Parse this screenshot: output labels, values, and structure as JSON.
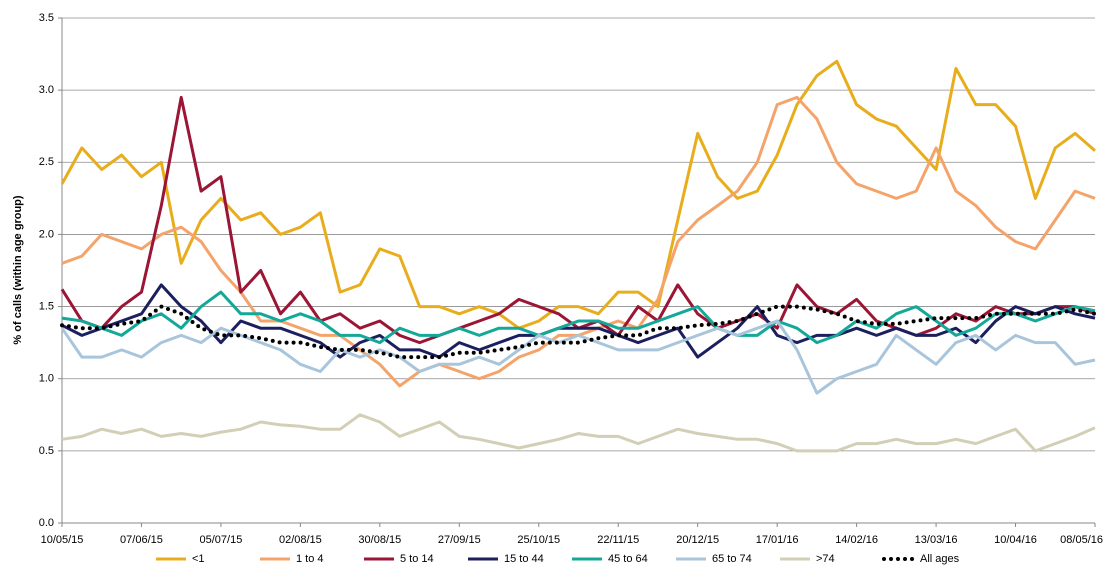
{
  "chart_data": {
    "type": "line",
    "y_label": "% of calls (within age group)",
    "categories": [
      "10/05/15",
      null,
      null,
      null,
      "07/06/15",
      null,
      null,
      null,
      "05/07/15",
      null,
      null,
      null,
      "02/08/15",
      null,
      null,
      null,
      "30/08/15",
      null,
      null,
      null,
      "27/09/15",
      null,
      null,
      null,
      "25/10/15",
      null,
      null,
      null,
      "22/11/15",
      null,
      null,
      null,
      "20/12/15",
      null,
      null,
      null,
      "17/01/16",
      null,
      null,
      null,
      "14/02/16",
      null,
      null,
      null,
      "13/03/16",
      null,
      null,
      null,
      "10/04/16",
      null,
      null,
      null,
      "08/05/16"
    ],
    "ylim": [
      0,
      3.5
    ],
    "yticks": [
      {
        "value": 0,
        "label": "0.0"
      },
      0.5,
      {
        "value": 1,
        "label": "1.0"
      },
      1.5,
      {
        "value": 2,
        "label": "2.0"
      },
      2.5,
      {
        "value": 3,
        "label": "3.0"
      },
      3.5
    ],
    "grid": true,
    "legend": "bottom",
    "series": [
      {
        "name": "<1",
        "color": "#e8ad1c",
        "values": [
          2.35,
          2.6,
          2.45,
          2.55,
          2.4,
          2.5,
          1.8,
          2.1,
          2.25,
          2.1,
          2.15,
          2.0,
          2.05,
          2.15,
          1.6,
          1.65,
          1.9,
          1.85,
          1.5,
          1.5,
          1.45,
          1.5,
          1.45,
          1.35,
          1.4,
          1.5,
          1.5,
          1.45,
          1.6,
          1.6,
          1.5,
          2.1,
          2.7,
          2.4,
          2.25,
          2.3,
          2.55,
          2.9,
          3.1,
          3.2,
          2.9,
          2.8,
          2.75,
          2.6,
          2.45,
          3.15,
          2.9,
          2.9,
          2.75,
          2.25,
          2.6,
          2.7,
          2.58
        ]
      },
      {
        "name": "1 to 4",
        "color": "#f4a46a",
        "values": [
          1.8,
          1.85,
          2.0,
          1.95,
          1.9,
          2.0,
          2.05,
          1.95,
          1.75,
          1.6,
          1.4,
          1.4,
          1.35,
          1.3,
          1.3,
          1.2,
          1.1,
          0.95,
          1.05,
          1.1,
          1.05,
          1.0,
          1.05,
          1.15,
          1.2,
          1.3,
          1.3,
          1.35,
          1.4,
          1.35,
          1.55,
          1.95,
          2.1,
          2.2,
          2.3,
          2.5,
          2.9,
          2.95,
          2.8,
          2.5,
          2.35,
          2.3,
          2.25,
          2.3,
          2.6,
          2.3,
          2.2,
          2.05,
          1.95,
          1.9,
          2.1,
          2.3,
          2.25
        ]
      },
      {
        "name": "5 to 14",
        "color": "#9b1535",
        "values": [
          1.62,
          1.4,
          1.35,
          1.5,
          1.6,
          2.2,
          2.95,
          2.3,
          2.4,
          1.6,
          1.75,
          1.45,
          1.6,
          1.4,
          1.45,
          1.35,
          1.4,
          1.3,
          1.25,
          1.3,
          1.35,
          1.4,
          1.45,
          1.55,
          1.5,
          1.45,
          1.35,
          1.4,
          1.3,
          1.5,
          1.4,
          1.65,
          1.45,
          1.35,
          1.4,
          1.45,
          1.35,
          1.65,
          1.5,
          1.45,
          1.55,
          1.4,
          1.35,
          1.3,
          1.35,
          1.45,
          1.4,
          1.5,
          1.45,
          1.45,
          1.5,
          1.5,
          1.45
        ]
      },
      {
        "name": "15 to 44",
        "color": "#1c1f5e",
        "values": [
          1.37,
          1.3,
          1.35,
          1.4,
          1.45,
          1.65,
          1.5,
          1.4,
          1.25,
          1.4,
          1.35,
          1.35,
          1.3,
          1.25,
          1.15,
          1.25,
          1.3,
          1.2,
          1.2,
          1.15,
          1.25,
          1.2,
          1.25,
          1.3,
          1.3,
          1.35,
          1.35,
          1.35,
          1.3,
          1.25,
          1.3,
          1.35,
          1.15,
          1.25,
          1.35,
          1.5,
          1.3,
          1.25,
          1.3,
          1.3,
          1.35,
          1.3,
          1.35,
          1.3,
          1.3,
          1.35,
          1.25,
          1.4,
          1.5,
          1.45,
          1.5,
          1.45,
          1.42
        ]
      },
      {
        "name": "45 to 64",
        "color": "#14a899",
        "values": [
          1.42,
          1.4,
          1.35,
          1.3,
          1.4,
          1.45,
          1.35,
          1.5,
          1.6,
          1.45,
          1.45,
          1.4,
          1.45,
          1.4,
          1.3,
          1.3,
          1.25,
          1.35,
          1.3,
          1.3,
          1.35,
          1.3,
          1.35,
          1.35,
          1.3,
          1.35,
          1.4,
          1.4,
          1.35,
          1.35,
          1.4,
          1.45,
          1.5,
          1.35,
          1.3,
          1.3,
          1.4,
          1.35,
          1.25,
          1.3,
          1.4,
          1.35,
          1.45,
          1.5,
          1.4,
          1.3,
          1.35,
          1.45,
          1.45,
          1.4,
          1.45,
          1.5,
          1.47
        ]
      },
      {
        "name": "65 to 74",
        "color": "#a9c5dc",
        "values": [
          1.35,
          1.15,
          1.15,
          1.2,
          1.15,
          1.25,
          1.3,
          1.25,
          1.35,
          1.3,
          1.25,
          1.2,
          1.1,
          1.05,
          1.2,
          1.15,
          1.2,
          1.15,
          1.05,
          1.1,
          1.1,
          1.15,
          1.1,
          1.2,
          1.3,
          1.25,
          1.3,
          1.25,
          1.2,
          1.2,
          1.2,
          1.25,
          1.3,
          1.35,
          1.3,
          1.35,
          1.4,
          1.2,
          0.9,
          1.0,
          1.05,
          1.1,
          1.3,
          1.2,
          1.1,
          1.25,
          1.3,
          1.2,
          1.3,
          1.25,
          1.25,
          1.1,
          1.13
        ]
      },
      {
        "name": ">74",
        "color": "#d3cfb6",
        "values": [
          0.58,
          0.6,
          0.65,
          0.62,
          0.65,
          0.6,
          0.62,
          0.6,
          0.63,
          0.65,
          0.7,
          0.68,
          0.67,
          0.65,
          0.65,
          0.75,
          0.7,
          0.6,
          0.65,
          0.7,
          0.6,
          0.58,
          0.55,
          0.52,
          0.55,
          0.58,
          0.62,
          0.6,
          0.6,
          0.55,
          0.6,
          0.65,
          0.62,
          0.6,
          0.58,
          0.58,
          0.55,
          0.5,
          0.5,
          0.5,
          0.55,
          0.55,
          0.58,
          0.55,
          0.55,
          0.58,
          0.55,
          0.6,
          0.65,
          0.5,
          0.55,
          0.6,
          0.66
        ]
      },
      {
        "name": "All ages",
        "color": "#000000",
        "style": "dotted",
        "values": [
          1.37,
          1.35,
          1.35,
          1.38,
          1.4,
          1.5,
          1.45,
          1.35,
          1.3,
          1.3,
          1.28,
          1.25,
          1.25,
          1.22,
          1.2,
          1.2,
          1.18,
          1.15,
          1.15,
          1.15,
          1.18,
          1.18,
          1.2,
          1.22,
          1.25,
          1.25,
          1.25,
          1.28,
          1.3,
          1.3,
          1.35,
          1.35,
          1.37,
          1.38,
          1.4,
          1.45,
          1.5,
          1.5,
          1.48,
          1.45,
          1.4,
          1.38,
          1.38,
          1.4,
          1.42,
          1.42,
          1.42,
          1.45,
          1.45,
          1.45,
          1.45,
          1.48,
          1.45
        ]
      }
    ]
  }
}
